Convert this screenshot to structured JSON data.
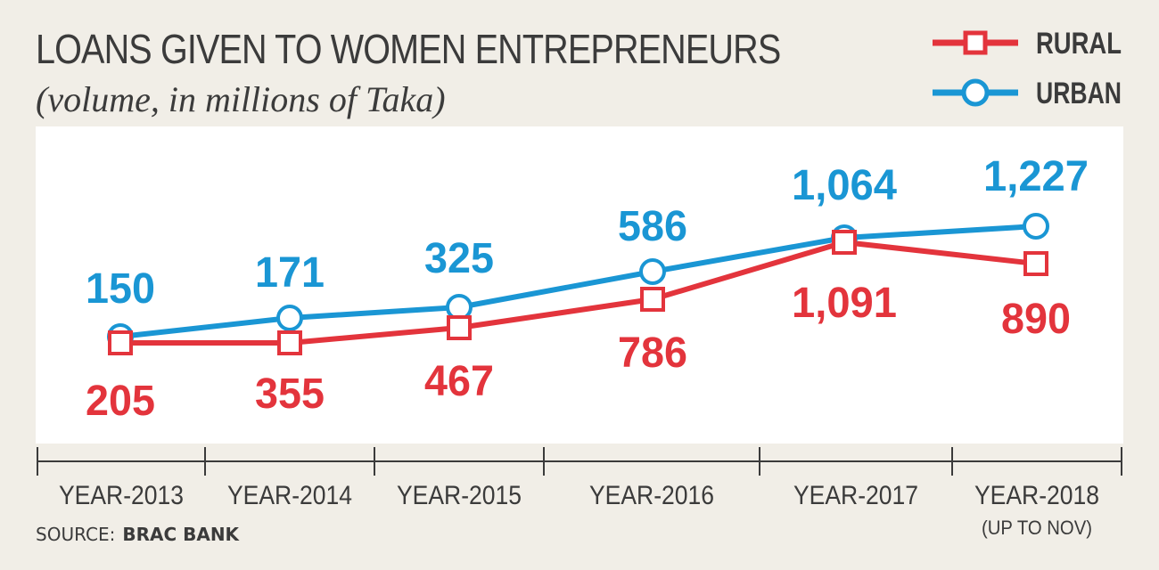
{
  "header": {
    "title": "LOANS GIVEN TO WOMEN ENTREPRENEURS",
    "subtitle": "(volume, in millions of Taka)"
  },
  "footer": {
    "source_label": "SOURCE:",
    "source_name": "BRAC BANK"
  },
  "chart_data": {
    "type": "line",
    "title": "LOANS GIVEN TO WOMEN ENTREPRENEURS",
    "subtitle": "(volume, in millions of Taka)",
    "categories": [
      "YEAR-2013",
      "YEAR-2014",
      "YEAR-2015",
      "YEAR-2016",
      "YEAR-2017",
      "YEAR-2018"
    ],
    "category_notes": [
      "",
      "",
      "",
      "",
      "",
      "(UP TO NOV)"
    ],
    "series": [
      {
        "name": "RURAL",
        "values": [
          205,
          355,
          467,
          786,
          1091,
          890
        ],
        "labels": [
          "205",
          "355",
          "467",
          "786",
          "1,091",
          "890"
        ],
        "color": "#e3343c",
        "marker": "square"
      },
      {
        "name": "URBAN",
        "values": [
          150,
          171,
          325,
          586,
          1064,
          1227
        ],
        "labels": [
          "150",
          "171",
          "325",
          "586",
          "1,064",
          "1,227"
        ],
        "color": "#1a96d4",
        "marker": "circle"
      }
    ],
    "legend_position": "top-right",
    "grid": false,
    "y_axis_shown": false
  },
  "colors": {
    "background": "#f1eee7",
    "plot_area": "#ffffff",
    "text": "#3b3b3b",
    "rural": "#e3343c",
    "urban": "#1a96d4"
  }
}
